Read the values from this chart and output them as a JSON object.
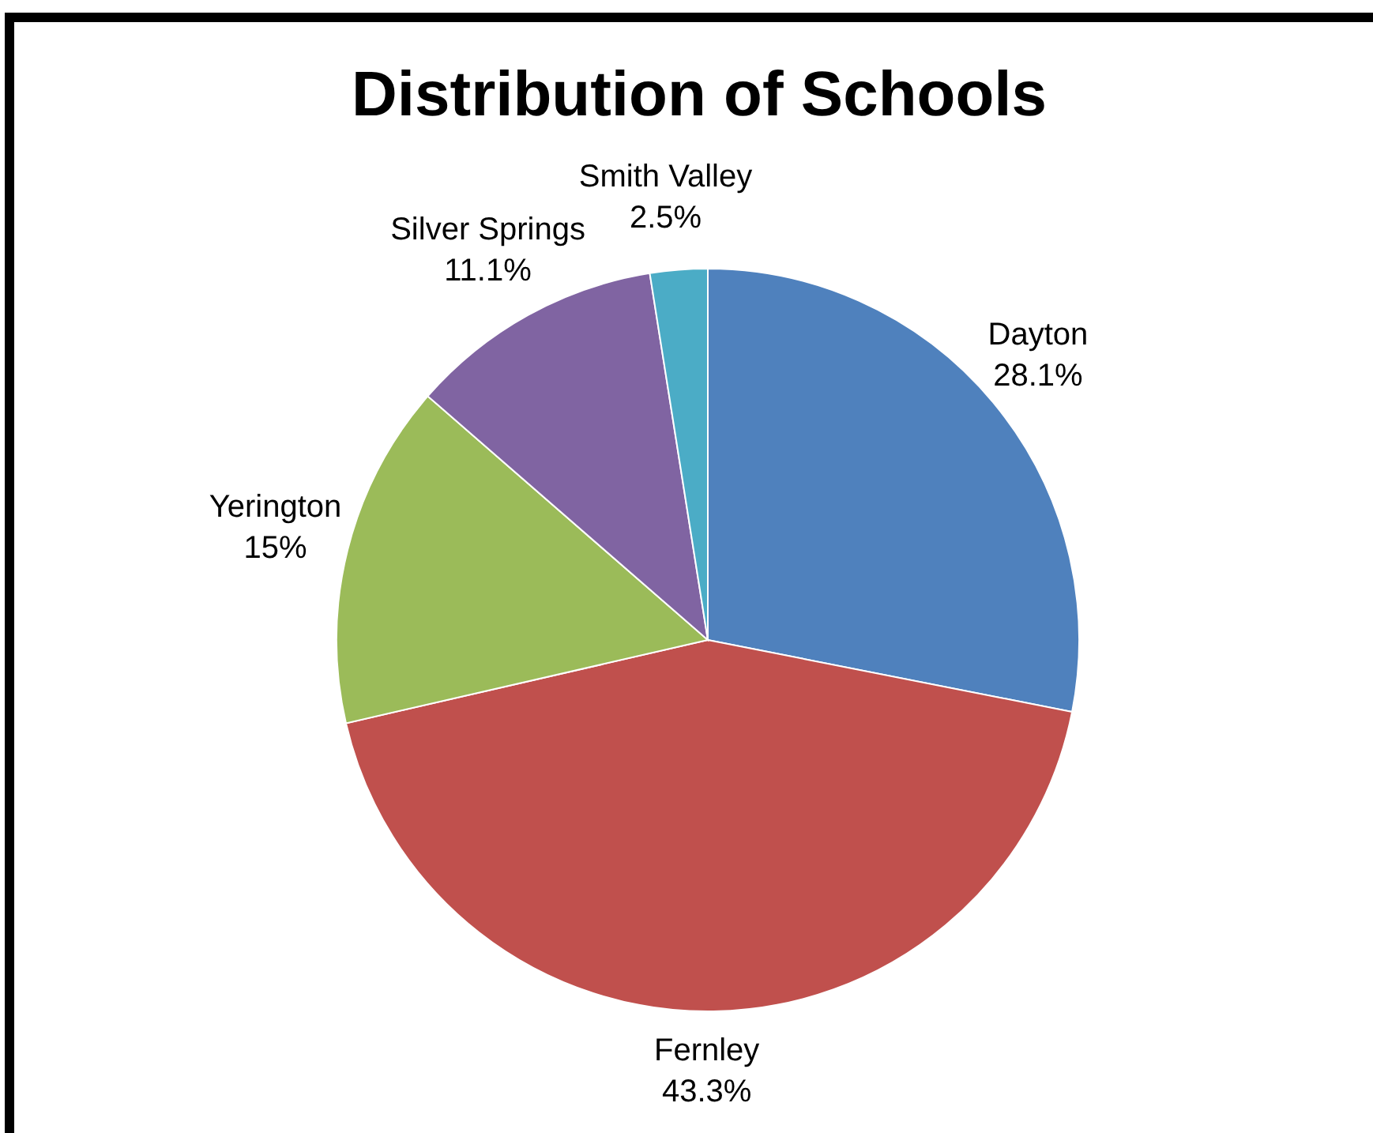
{
  "chart_data": {
    "type": "pie",
    "title": "Distribution of Schools",
    "categories": [
      "Dayton",
      "Fernley",
      "Yerington",
      "Silver Springs",
      "Smith Valley"
    ],
    "values": [
      28.1,
      43.3,
      15,
      11.1,
      2.5
    ],
    "value_labels": [
      "28.1%",
      "43.3%",
      "15%",
      "11.1%",
      "2.5%"
    ],
    "colors": [
      "#4f81bd",
      "#c0504d",
      "#9bbb59",
      "#8064a2",
      "#4bacc6"
    ],
    "legend": false
  }
}
